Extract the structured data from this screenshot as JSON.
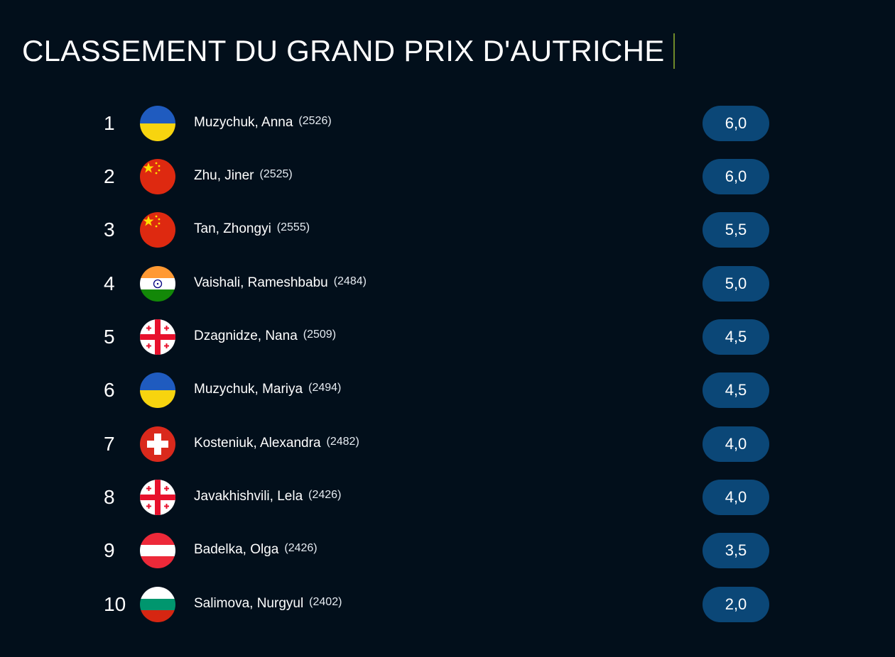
{
  "title": "CLASSEMENT DU GRAND PRIX D'AUTRICHE",
  "colors": {
    "background": "#020f1b",
    "score_pill": "#0b4777",
    "title_bar": "#6f8a2a"
  },
  "standings": [
    {
      "rank": "1",
      "name": "Muzychuk, Anna",
      "rating": "(2526)",
      "score": "6,0",
      "flag": "ukraine-flag-icon"
    },
    {
      "rank": "2",
      "name": "Zhu, Jiner",
      "rating": "(2525)",
      "score": "6,0",
      "flag": "china-flag-icon"
    },
    {
      "rank": "3",
      "name": "Tan, Zhongyi",
      "rating": "(2555)",
      "score": "5,5",
      "flag": "china-flag-icon"
    },
    {
      "rank": "4",
      "name": "Vaishali, Rameshbabu",
      "rating": "(2484)",
      "score": "5,0",
      "flag": "india-flag-icon"
    },
    {
      "rank": "5",
      "name": "Dzagnidze, Nana",
      "rating": "(2509)",
      "score": "4,5",
      "flag": "georgia-flag-icon"
    },
    {
      "rank": "6",
      "name": "Muzychuk, Mariya",
      "rating": "(2494)",
      "score": "4,5",
      "flag": "ukraine-flag-icon"
    },
    {
      "rank": "7",
      "name": "Kosteniuk, Alexandra",
      "rating": "(2482)",
      "score": "4,0",
      "flag": "switzerland-flag-icon"
    },
    {
      "rank": "8",
      "name": "Javakhishvili, Lela",
      "rating": "(2426)",
      "score": "4,0",
      "flag": "georgia-flag-icon"
    },
    {
      "rank": "9",
      "name": "Badelka, Olga",
      "rating": "(2426)",
      "score": "3,5",
      "flag": "austria-flag-icon"
    },
    {
      "rank": "10",
      "name": "Salimova, Nurgyul",
      "rating": "(2402)",
      "score": "2,0",
      "flag": "bulgaria-flag-icon"
    }
  ]
}
